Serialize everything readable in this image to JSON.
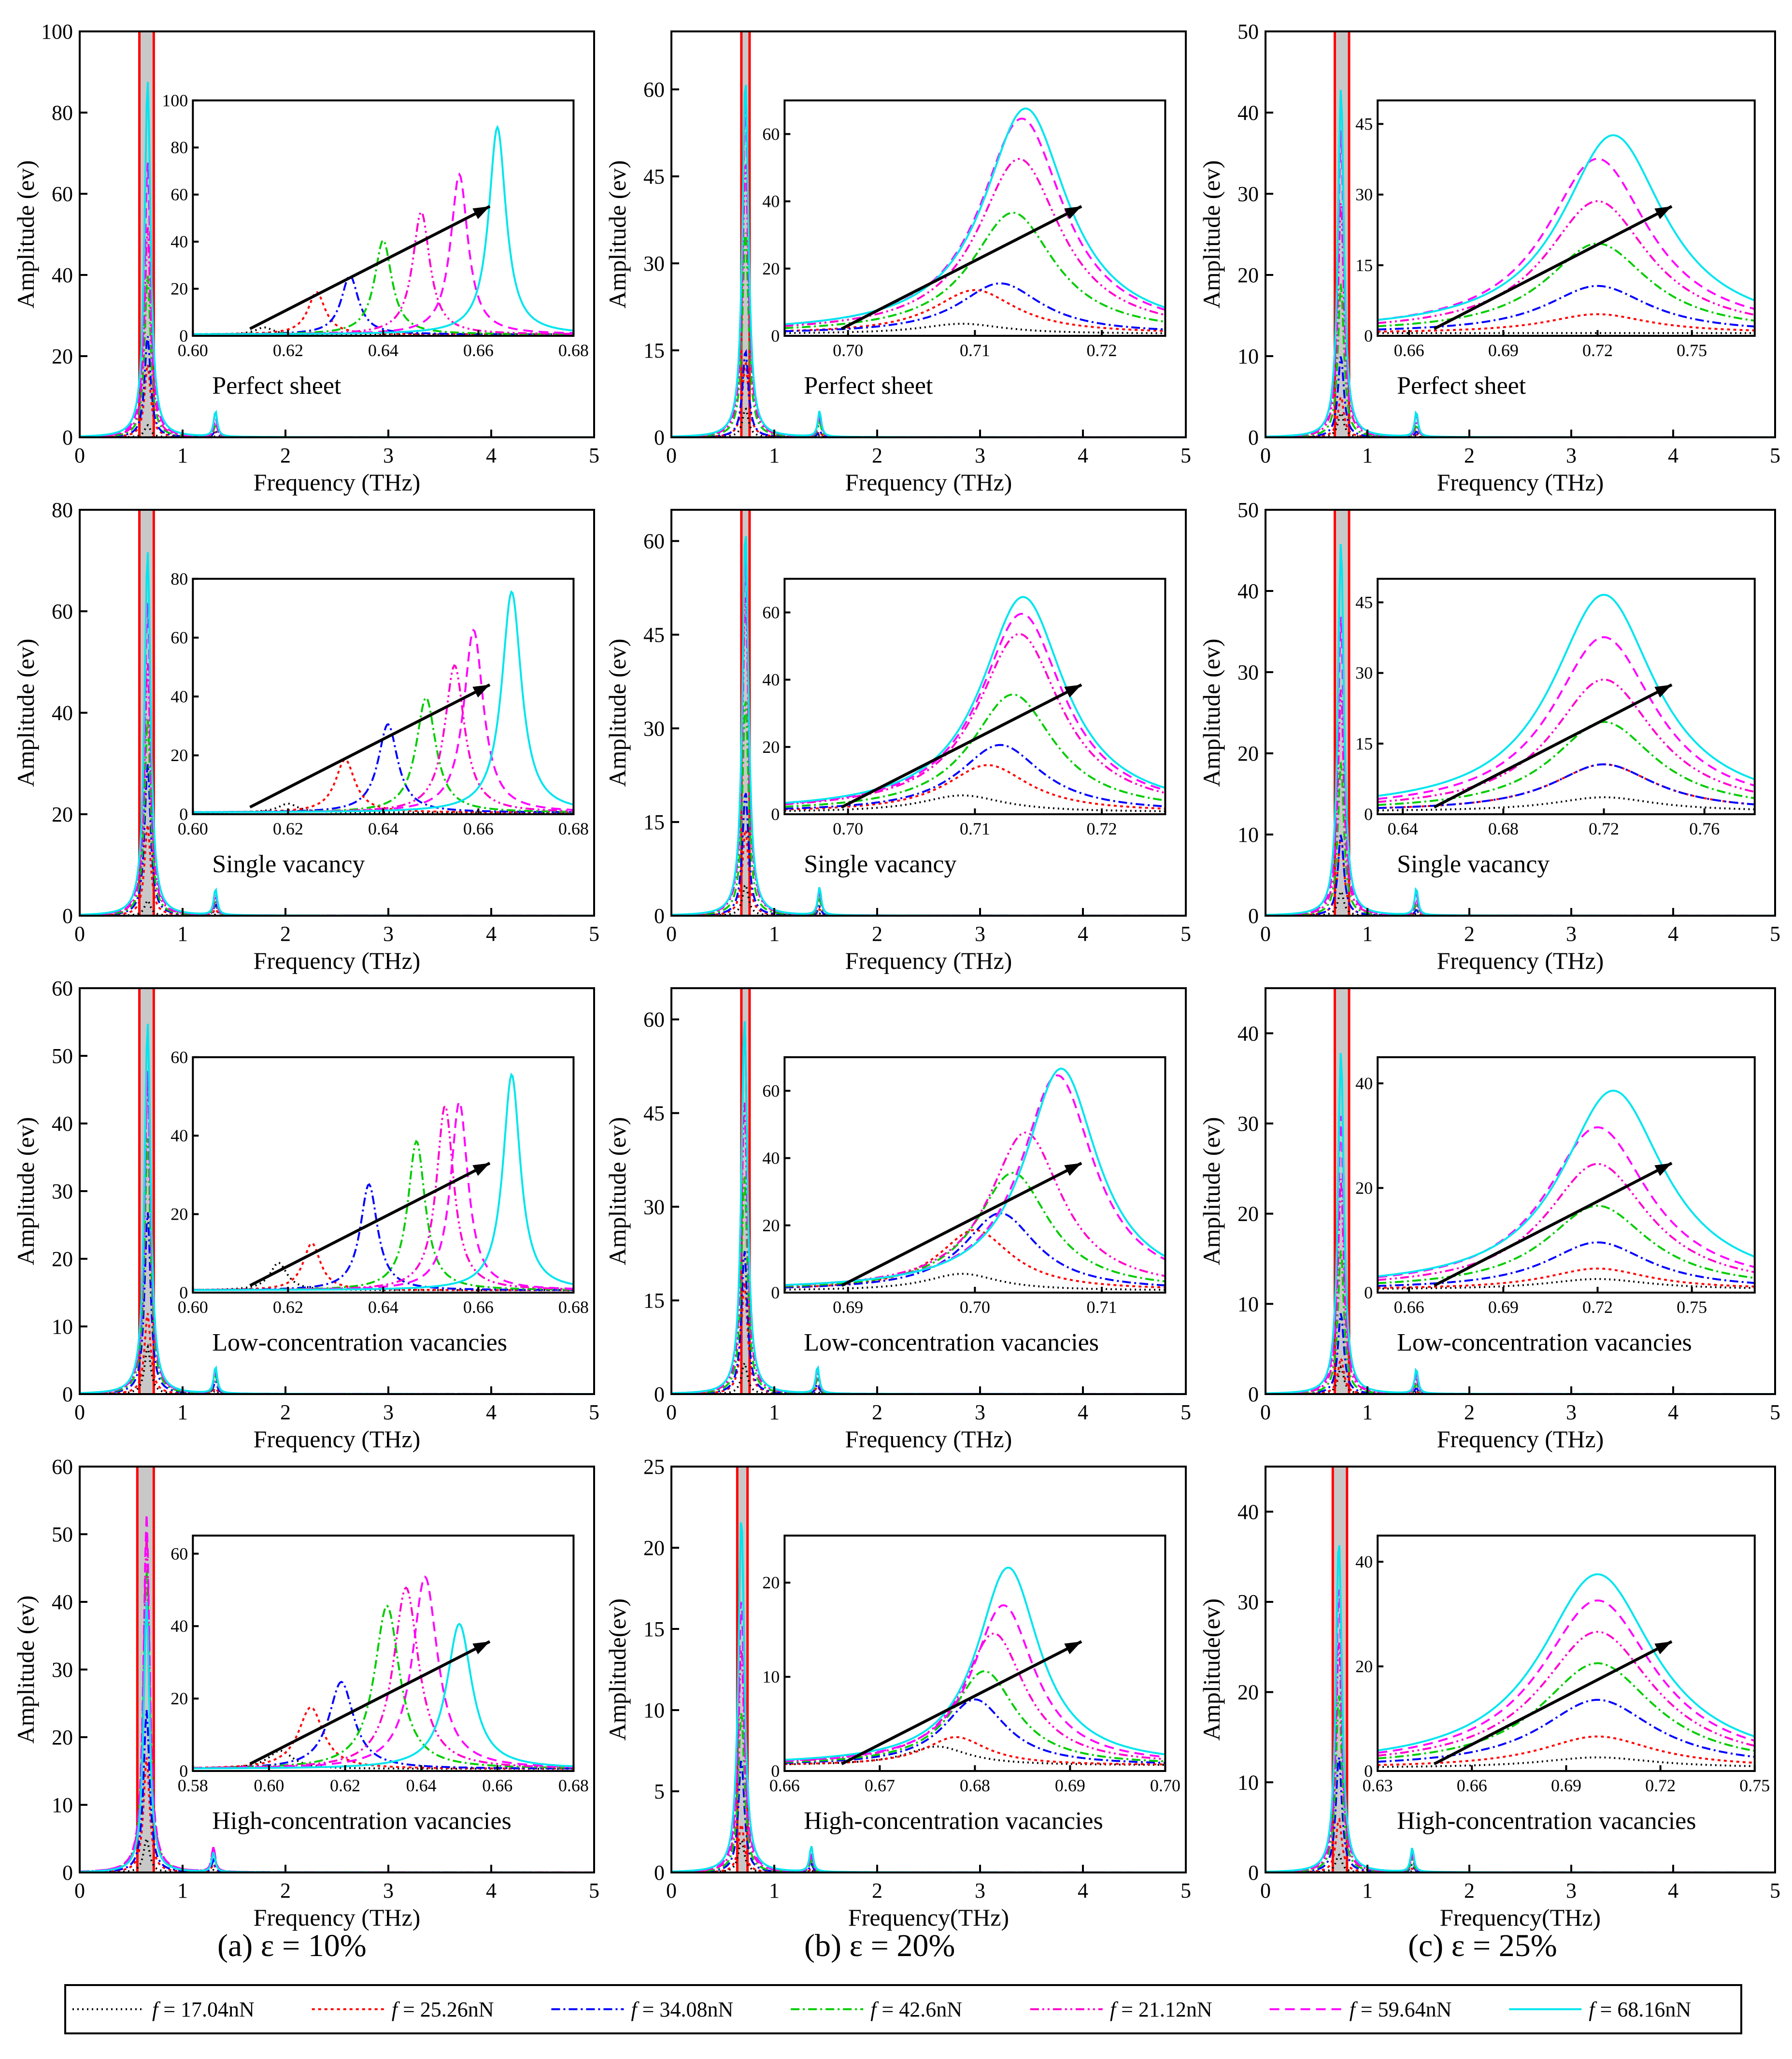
{
  "figure": {
    "columns": [
      {
        "caption": "(a)  ε = 10%"
      },
      {
        "caption": "(b)  ε = 20%"
      },
      {
        "caption": "(c)  ε = 25%"
      }
    ]
  },
  "legend": [
    {
      "label": "f = 17.04nN",
      "f": "f",
      "rest": " = 17.04nN",
      "color": "#000000",
      "dash": "3,7"
    },
    {
      "label": "f = 25.26nN",
      "f": "f",
      "rest": " = 25.26nN",
      "color": "#ff0000",
      "dash": "6,7"
    },
    {
      "label": "f = 34.08nN",
      "f": "f",
      "rest": " = 34.08nN",
      "color": "#0000ff",
      "dash": "18,7,4,7"
    },
    {
      "label": "f = 42.6nN",
      "f": "f",
      "rest": " = 42.6nN",
      "color": "#00cc00",
      "dash": "18,7,4,7"
    },
    {
      "label": "f = 21.12nN",
      "f": "f",
      "rest": " = 21.12nN",
      "color": "#ff00cc",
      "dash": "18,7,4,7,4,7"
    },
    {
      "label": "f = 59.64nN",
      "f": "f",
      "rest": " = 59.64nN",
      "color": "#ff00ff",
      "dash": "20,12"
    },
    {
      "label": "f = 68.16nN",
      "f": "f",
      "rest": " = 68.16nN",
      "color": "#00e5ee",
      "dash": ""
    }
  ],
  "chart_data": [
    {
      "type": "line",
      "row": 0,
      "col": 0,
      "title": "Perfect sheet",
      "xlabel": "Frequency (THz)",
      "ylabel": "Amplitude (ev)",
      "xlim": [
        0,
        5
      ],
      "ylim": [
        0,
        100
      ],
      "xticks": [
        "0",
        "1",
        "2",
        "3",
        "4",
        "5"
      ],
      "yticks": [
        "0",
        "20",
        "40",
        "60",
        "80",
        "100"
      ],
      "peak_x": 0.66,
      "band": [
        0.58,
        0.72
      ],
      "peaks": [
        3,
        18,
        25,
        40,
        52,
        68,
        88
      ],
      "inset": {
        "xlim": [
          0.6,
          0.68
        ],
        "ylim": [
          0,
          100
        ],
        "xticks": [
          "0.60",
          "0.62",
          "0.64",
          "0.66",
          "0.68"
        ],
        "yticks": [
          "0",
          "20",
          "40",
          "60",
          "80",
          "100"
        ],
        "peak_centers": [
          0.615,
          0.626,
          0.633,
          0.64,
          0.648,
          0.656,
          0.664
        ],
        "peaks": [
          3,
          18,
          25,
          40,
          52,
          68,
          88
        ],
        "width": 0.0022
      }
    },
    {
      "type": "line",
      "row": 0,
      "col": 1,
      "title": "Perfect sheet",
      "xlabel": "Frequency (THz)",
      "ylabel": "Amplitude (ev)",
      "xlim": [
        0,
        5
      ],
      "ylim": [
        0,
        70
      ],
      "xticks": [
        "0",
        "1",
        "2",
        "3",
        "4",
        "5"
      ],
      "yticks": [
        "0",
        "15",
        "30",
        "45",
        "60"
      ],
      "peak_x": 0.72,
      "band": [
        0.68,
        0.76
      ],
      "peaks": [
        5,
        13,
        15,
        36,
        48,
        58,
        62
      ],
      "inset": {
        "xlim": [
          0.695,
          0.725
        ],
        "ylim": [
          0,
          70
        ],
        "xticks": [
          "0.70",
          "0.71",
          "0.72"
        ],
        "yticks": [
          "0",
          "20",
          "40",
          "60"
        ],
        "peak_centers": [
          0.709,
          0.71,
          0.712,
          0.713,
          0.7135,
          0.7137,
          0.714
        ],
        "peaks": [
          3,
          13,
          15,
          36,
          52,
          64,
          67
        ],
        "width": 0.004
      }
    },
    {
      "type": "line",
      "row": 0,
      "col": 2,
      "title": "Perfect sheet",
      "xlabel": "Frequency (THz)",
      "ylabel": "Amplitude (ev)",
      "xlim": [
        0,
        5
      ],
      "ylim": [
        0,
        50
      ],
      "xticks": [
        "0",
        "1",
        "2",
        "3",
        "4",
        "5"
      ],
      "yticks": [
        "0",
        "10",
        "20",
        "30",
        "40",
        "50"
      ],
      "peak_x": 0.74,
      "band": [
        0.68,
        0.82
      ],
      "peaks": [
        3,
        5,
        10,
        19,
        29,
        38,
        43
      ],
      "inset": {
        "xlim": [
          0.65,
          0.77
        ],
        "ylim": [
          0,
          50
        ],
        "xticks": [
          "0.66",
          "0.69",
          "0.72",
          "0.75"
        ],
        "yticks": [
          "0",
          "15",
          "30",
          "45"
        ],
        "peak_centers": [
          0.72,
          0.72,
          0.72,
          0.72,
          0.72,
          0.72,
          0.725
        ],
        "peaks": [
          0,
          4,
          10,
          19,
          28,
          37,
          42
        ],
        "width": 0.02
      }
    },
    {
      "type": "line",
      "row": 1,
      "col": 0,
      "title": "Single vacancy",
      "xlabel": "Frequency (THz)",
      "ylabel": "Amplitude (ev)",
      "xlim": [
        0,
        5
      ],
      "ylim": [
        0,
        80
      ],
      "xticks": [
        "0",
        "1",
        "2",
        "3",
        "4",
        "5"
      ],
      "yticks": [
        "0",
        "20",
        "40",
        "60",
        "80"
      ],
      "peak_x": 0.66,
      "band": [
        0.58,
        0.72
      ],
      "peaks": [
        3,
        18,
        30,
        39,
        50,
        62,
        72
      ],
      "inset": {
        "xlim": [
          0.6,
          0.68
        ],
        "ylim": [
          0,
          80
        ],
        "xticks": [
          "0.60",
          "0.62",
          "0.64",
          "0.66",
          "0.68"
        ],
        "yticks": [
          "0",
          "20",
          "40",
          "60",
          "80"
        ],
        "peak_centers": [
          0.62,
          0.632,
          0.641,
          0.649,
          0.655,
          0.659,
          0.667
        ],
        "peaks": [
          3,
          18,
          30,
          39,
          50,
          62,
          75
        ],
        "width": 0.0025
      }
    },
    {
      "type": "line",
      "row": 1,
      "col": 1,
      "title": "Single vacancy",
      "xlabel": "Frequency (THz)",
      "ylabel": "Amplitude (ev)",
      "xlim": [
        0,
        5
      ],
      "ylim": [
        0,
        65
      ],
      "xticks": [
        "0",
        "1",
        "2",
        "3",
        "4",
        "5"
      ],
      "yticks": [
        "0",
        "15",
        "30",
        "45",
        "60"
      ],
      "peak_x": 0.72,
      "band": [
        0.68,
        0.76
      ],
      "peaks": [
        5,
        14,
        20,
        35,
        52,
        58,
        62
      ],
      "inset": {
        "xlim": [
          0.695,
          0.725
        ],
        "ylim": [
          0,
          70
        ],
        "xticks": [
          "0.70",
          "0.71",
          "0.72"
        ],
        "yticks": [
          "0",
          "20",
          "40",
          "60"
        ],
        "peak_centers": [
          0.709,
          0.711,
          0.712,
          0.713,
          0.7135,
          0.7137,
          0.7138
        ],
        "peaks": [
          5,
          14,
          20,
          35,
          53,
          59,
          64
        ],
        "width": 0.004
      }
    },
    {
      "type": "line",
      "row": 1,
      "col": 2,
      "title": "Single vacancy",
      "xlabel": "Frequency (THz)",
      "ylabel": "Amplitude (ev)",
      "xlim": [
        0,
        5
      ],
      "ylim": [
        0,
        50
      ],
      "xticks": [
        "0",
        "1",
        "2",
        "3",
        "4",
        "5"
      ],
      "yticks": [
        "0",
        "10",
        "20",
        "30",
        "40",
        "50"
      ],
      "peak_x": 0.74,
      "band": [
        0.68,
        0.82
      ],
      "peaks": [
        3,
        10,
        10,
        19,
        28,
        37,
        46
      ],
      "inset": {
        "xlim": [
          0.63,
          0.78
        ],
        "ylim": [
          0,
          50
        ],
        "xticks": [
          "0.64",
          "0.68",
          "0.72",
          "0.76"
        ],
        "yticks": [
          "0",
          "15",
          "30",
          "45"
        ],
        "peak_centers": [
          0.72,
          0.72,
          0.72,
          0.72,
          0.72,
          0.72,
          0.72
        ],
        "peaks": [
          3,
          10,
          10,
          19,
          28,
          37,
          46
        ],
        "width": 0.025
      }
    },
    {
      "type": "line",
      "row": 2,
      "col": 0,
      "title": "Low-concentration vacancies",
      "xlabel": "Frequency (THz)",
      "ylabel": "Amplitude (ev)",
      "xlim": [
        0,
        5
      ],
      "ylim": [
        0,
        60
      ],
      "xticks": [
        "0",
        "1",
        "2",
        "3",
        "4",
        "5"
      ],
      "yticks": [
        "0",
        "10",
        "20",
        "30",
        "40",
        "50",
        "60"
      ],
      "peak_x": 0.66,
      "band": [
        0.58,
        0.72
      ],
      "peaks": [
        7,
        12,
        27,
        38,
        47,
        48,
        55
      ],
      "inset": {
        "xlim": [
          0.6,
          0.68
        ],
        "ylim": [
          0,
          60
        ],
        "xticks": [
          "0.60",
          "0.62",
          "0.64",
          "0.66",
          "0.68"
        ],
        "yticks": [
          "0",
          "20",
          "40",
          "60"
        ],
        "peak_centers": [
          0.618,
          0.625,
          0.637,
          0.647,
          0.653,
          0.656,
          0.667
        ],
        "peaks": [
          7,
          12,
          27,
          38,
          47,
          48,
          55
        ],
        "width": 0.0022
      }
    },
    {
      "type": "line",
      "row": 2,
      "col": 1,
      "title": "Low-concentration vacancies",
      "xlabel": "Frequency (THz)",
      "ylabel": "Amplitude (ev)",
      "xlim": [
        0,
        5
      ],
      "ylim": [
        0,
        65
      ],
      "xticks": [
        "0",
        "1",
        "2",
        "3",
        "4",
        "5"
      ],
      "yticks": [
        "0",
        "15",
        "30",
        "45",
        "60"
      ],
      "peak_x": 0.71,
      "band": [
        0.68,
        0.76
      ],
      "peaks": [
        5,
        18,
        23,
        35,
        47,
        60,
        60
      ],
      "inset": {
        "xlim": [
          0.685,
          0.715
        ],
        "ylim": [
          0,
          70
        ],
        "xticks": [
          "0.69",
          "0.70",
          "0.71"
        ],
        "yticks": [
          "0",
          "20",
          "40",
          "60"
        ],
        "peak_centers": [
          0.699,
          0.7,
          0.702,
          0.703,
          0.704,
          0.7065,
          0.7068
        ],
        "peaks": [
          5,
          18,
          23,
          35,
          47,
          64,
          66
        ],
        "width": 0.0035
      }
    },
    {
      "type": "line",
      "row": 2,
      "col": 2,
      "title": "Low-concentration vacancies",
      "xlabel": "Frequency (THz)",
      "ylabel": "Amplitude (ev)",
      "xlim": [
        0,
        5
      ],
      "ylim": [
        0,
        45
      ],
      "xticks": [
        "0",
        "1",
        "2",
        "3",
        "4",
        "5"
      ],
      "yticks": [
        "0",
        "10",
        "20",
        "30",
        "40"
      ],
      "peak_x": 0.74,
      "band": [
        0.68,
        0.82
      ],
      "peaks": [
        3,
        4,
        9,
        16,
        24,
        31,
        38
      ],
      "inset": {
        "xlim": [
          0.65,
          0.77
        ],
        "ylim": [
          0,
          45
        ],
        "xticks": [
          "0.66",
          "0.69",
          "0.72",
          "0.75"
        ],
        "yticks": [
          "0",
          "20",
          "40"
        ],
        "peak_centers": [
          0.72,
          0.72,
          0.72,
          0.72,
          0.72,
          0.72,
          0.725
        ],
        "peaks": [
          2,
          4,
          9,
          16,
          24,
          31,
          38
        ],
        "width": 0.02
      }
    },
    {
      "type": "line",
      "row": 3,
      "col": 0,
      "title": "High-concentration vacancies",
      "xlabel": "Frequency (THz)",
      "ylabel": "Amplitude (ev)",
      "xlim": [
        0,
        5
      ],
      "ylim": [
        0,
        60
      ],
      "xticks": [
        "0",
        "1",
        "2",
        "3",
        "4",
        "5"
      ],
      "yticks": [
        "0",
        "10",
        "20",
        "30",
        "40",
        "50",
        "60"
      ],
      "peak_x": 0.65,
      "band": [
        0.56,
        0.72
      ],
      "peaks": [
        5,
        17,
        24,
        45,
        50,
        53,
        40
      ],
      "inset": {
        "xlim": [
          0.58,
          0.68
        ],
        "ylim": [
          0,
          65
        ],
        "xticks": [
          "0.58",
          "0.60",
          "0.62",
          "0.64",
          "0.66",
          "0.68"
        ],
        "yticks": [
          "0",
          "20",
          "40",
          "60"
        ],
        "peak_centers": [
          0.603,
          0.611,
          0.619,
          0.631,
          0.636,
          0.641,
          0.65
        ],
        "peaks": [
          5,
          17,
          24,
          45,
          50,
          53,
          40
        ],
        "width": 0.004
      }
    },
    {
      "type": "line",
      "row": 3,
      "col": 1,
      "title": "High-concentration vacancies",
      "xlabel": "Frequency(THz)",
      "ylabel": "Amplitude(ev)",
      "xlim": [
        0,
        5
      ],
      "ylim": [
        0,
        25
      ],
      "xticks": [
        "0",
        "1",
        "2",
        "3",
        "4",
        "5"
      ],
      "yticks": [
        "0",
        "5",
        "10",
        "15",
        "20",
        "25"
      ],
      "peak_x": 0.68,
      "band": [
        0.64,
        0.74
      ],
      "peaks": [
        2,
        3,
        7,
        10,
        14,
        17,
        22
      ],
      "inset": {
        "xlim": [
          0.66,
          0.7
        ],
        "ylim": [
          0,
          25
        ],
        "xticks": [
          "0.66",
          "0.67",
          "0.68",
          "0.69",
          "0.70"
        ],
        "yticks": [
          "0",
          "10",
          "20"
        ],
        "peak_centers": [
          0.676,
          0.678,
          0.68,
          0.681,
          0.682,
          0.683,
          0.6835
        ],
        "peaks": [
          2,
          3,
          7,
          10,
          14,
          17,
          21
        ],
        "width": 0.004
      }
    },
    {
      "type": "line",
      "row": 3,
      "col": 2,
      "title": "High-concentration vacancies",
      "xlabel": "Frequency(THz)",
      "ylabel": "Amplitude(ev)",
      "xlim": [
        0,
        5
      ],
      "ylim": [
        0,
        45
      ],
      "xticks": [
        "0",
        "1",
        "2",
        "3",
        "4",
        "5"
      ],
      "yticks": [
        "0",
        "10",
        "20",
        "30",
        "40"
      ],
      "peak_x": 0.72,
      "band": [
        0.66,
        0.8
      ],
      "peaks": [
        2,
        6,
        13,
        20,
        26,
        32,
        37
      ],
      "inset": {
        "xlim": [
          0.63,
          0.75
        ],
        "ylim": [
          0,
          45
        ],
        "xticks": [
          "0.63",
          "0.66",
          "0.69",
          "0.72",
          "0.75"
        ],
        "yticks": [
          "0",
          "20",
          "40"
        ],
        "peak_centers": [
          0.7,
          0.7,
          0.7,
          0.7,
          0.7,
          0.7,
          0.7
        ],
        "peaks": [
          2,
          6,
          13,
          20,
          26,
          32,
          37
        ],
        "width": 0.022
      }
    }
  ]
}
